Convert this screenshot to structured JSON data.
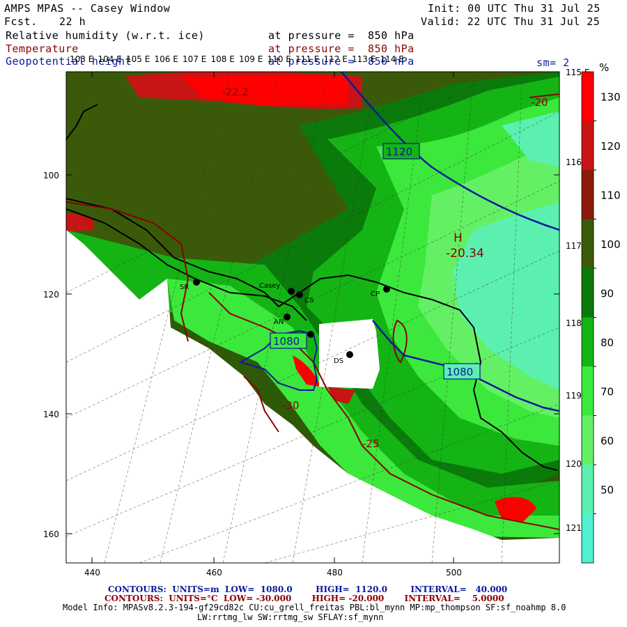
{
  "header": {
    "title": "AMPS MPAS -- Casey Window",
    "forecast_label": "Fcst.",
    "forecast_value": "22 h",
    "init": "Init: 00 UTC Thu 31 Jul 25",
    "valid": "Valid: 22 UTC Thu 31 Jul 25",
    "field1_name": "Relative humidity (w.r.t. ice)",
    "field1_level": "at pressure =  850 hPa",
    "field2_name": "Temperature",
    "field2_level": "at pressure =  850 hPa",
    "field3_name": "Geopotential height",
    "field3_level": "at pressure =  850 hPa",
    "smoothing": "sm= 2"
  },
  "map": {
    "x_ticks": [
      "440",
      "460",
      "480",
      "500"
    ],
    "y_ticks": [
      "100",
      "120",
      "140",
      "160"
    ],
    "lon_labels_top": [
      "103 E",
      "104 E",
      "105 E",
      "106 E",
      "107 E",
      "108 E",
      "109 E",
      "110 E",
      "111 E",
      "112 E",
      "113 E",
      "114 E"
    ],
    "lon_labels_right": [
      "115 E",
      "116 E",
      "117 E",
      "118 E",
      "119 E",
      "120 E",
      "121 E"
    ],
    "stations": [
      {
        "name": "SR"
      },
      {
        "name": "Casey"
      },
      {
        "name": "CS"
      },
      {
        "name": "AN"
      },
      {
        "name": "CP"
      },
      {
        "name": "DS"
      }
    ],
    "height_contour_labels": [
      "1120",
      "1080",
      "1080"
    ],
    "temperature_contour_labels": [
      "-22.2",
      "-20",
      "-25",
      "-30"
    ],
    "high_marker": "H",
    "high_value": "-20.34",
    "colors": {
      "height_contour": "#0a1a9a",
      "temperature_contour": "#8b0000",
      "coastline": "#000000"
    }
  },
  "colorbar": {
    "unit": "%",
    "labels": [
      "130",
      "120",
      "110",
      "100",
      "90",
      "80",
      "70",
      "60",
      "50"
    ],
    "bins": [
      {
        "color": "#ff0000"
      },
      {
        "color": "#c81414"
      },
      {
        "color": "#8c1a0a"
      },
      {
        "color": "#3a5a0a"
      },
      {
        "color": "#0a7a0a"
      },
      {
        "color": "#14b414"
      },
      {
        "color": "#3ce83c"
      },
      {
        "color": "#64f064"
      },
      {
        "color": "#5cf0b0"
      },
      {
        "color": "#50f0d0"
      }
    ]
  },
  "footer": {
    "contours_height": "CONTOURS:  UNITS=m  LOW=  1080.0        HIGH=  1120.0        INTERVAL=   40.000",
    "contours_temp": "CONTOURS:  UNITS=°C  LOW= -30.000       HIGH= -20.000       INTERVAL=    5.0000",
    "model_info_1": "Model Info: MPASv8.2.3-194-gf29cd82c CU:cu_grell_freitas PBL:bl_mynn MP:mp_thompson SF:sf_noahmp 8.0",
    "model_info_2": "LW:rrtmg_lw SW:rrtmg_sw SFLAY:sf_mynn"
  }
}
